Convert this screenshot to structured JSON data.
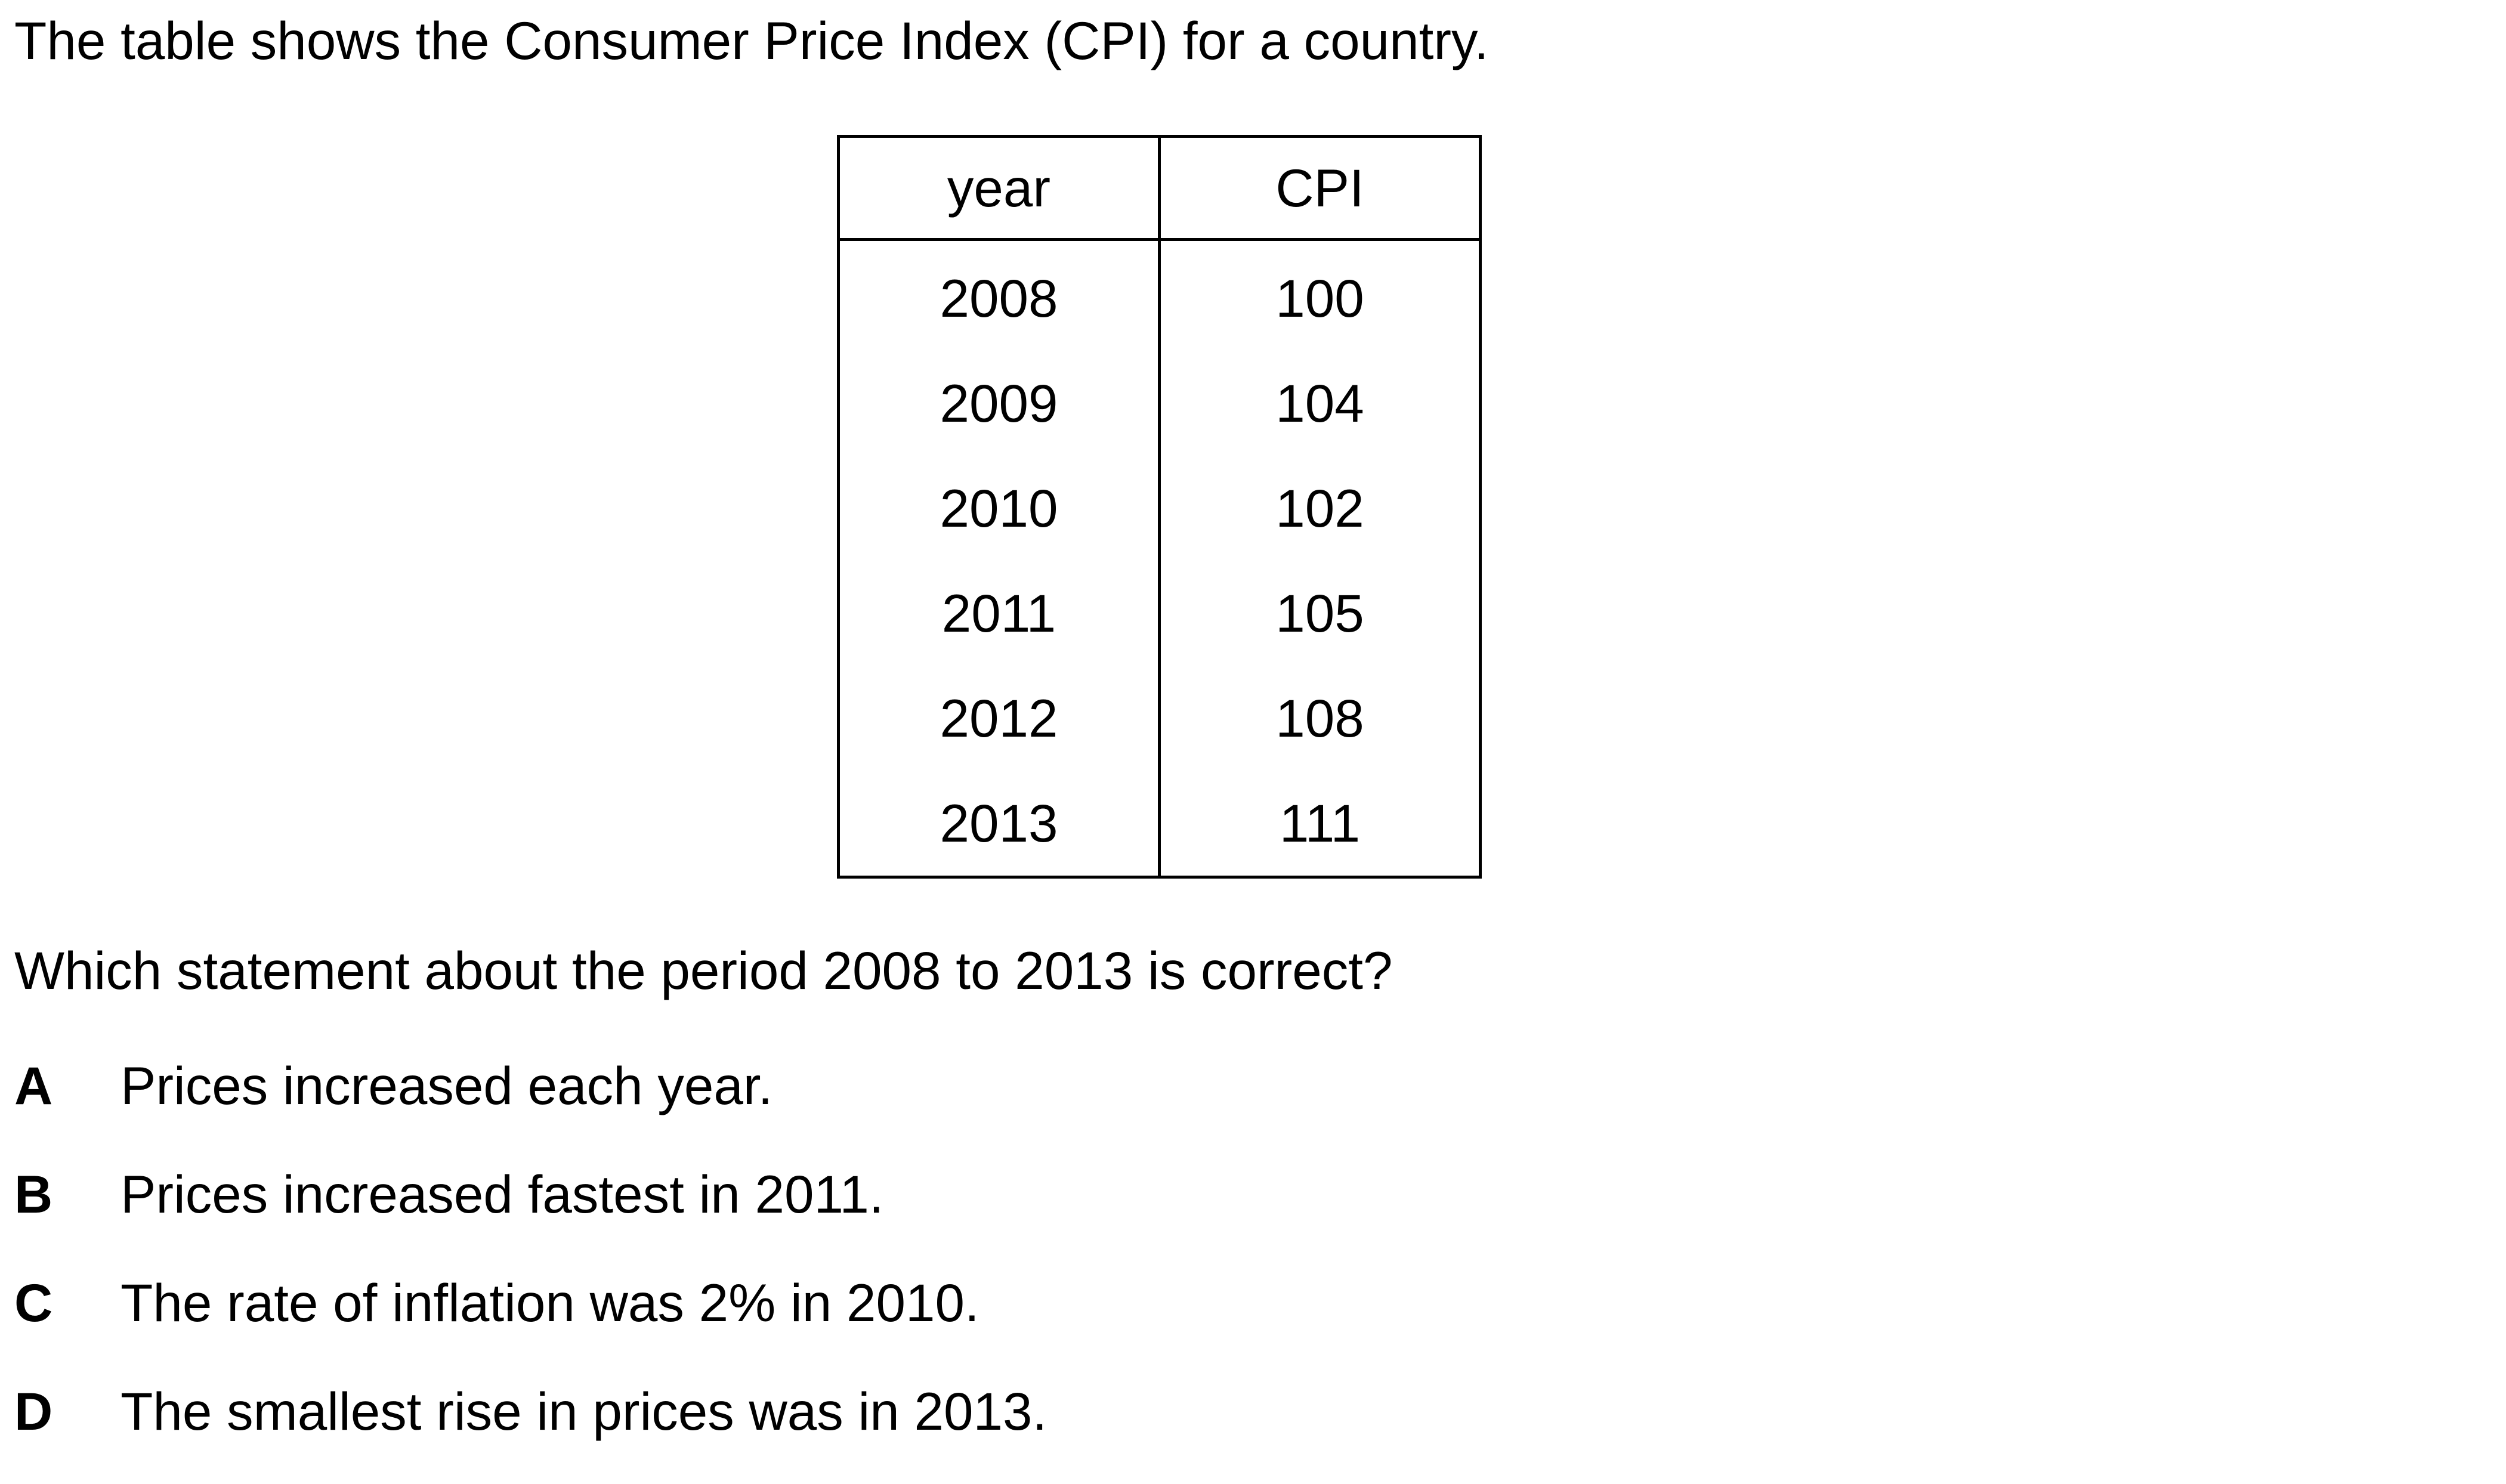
{
  "intro": "The table shows the Consumer Price Index (CPI) for a country.",
  "table": {
    "headers": [
      "year",
      "CPI"
    ],
    "rows": [
      [
        "2008",
        "100"
      ],
      [
        "2009",
        "104"
      ],
      [
        "2010",
        "102"
      ],
      [
        "2011",
        "105"
      ],
      [
        "2012",
        "108"
      ],
      [
        "2013",
        "111"
      ]
    ]
  },
  "question": "Which statement about the period 2008 to 2013 is correct?",
  "options": [
    {
      "letter": "A",
      "text": "Prices increased each year."
    },
    {
      "letter": "B",
      "text": "Prices increased fastest in 2011."
    },
    {
      "letter": "C",
      "text": "The rate of inflation was 2% in 2010."
    },
    {
      "letter": "D",
      "text": "The smallest rise in prices was in 2013."
    }
  ]
}
